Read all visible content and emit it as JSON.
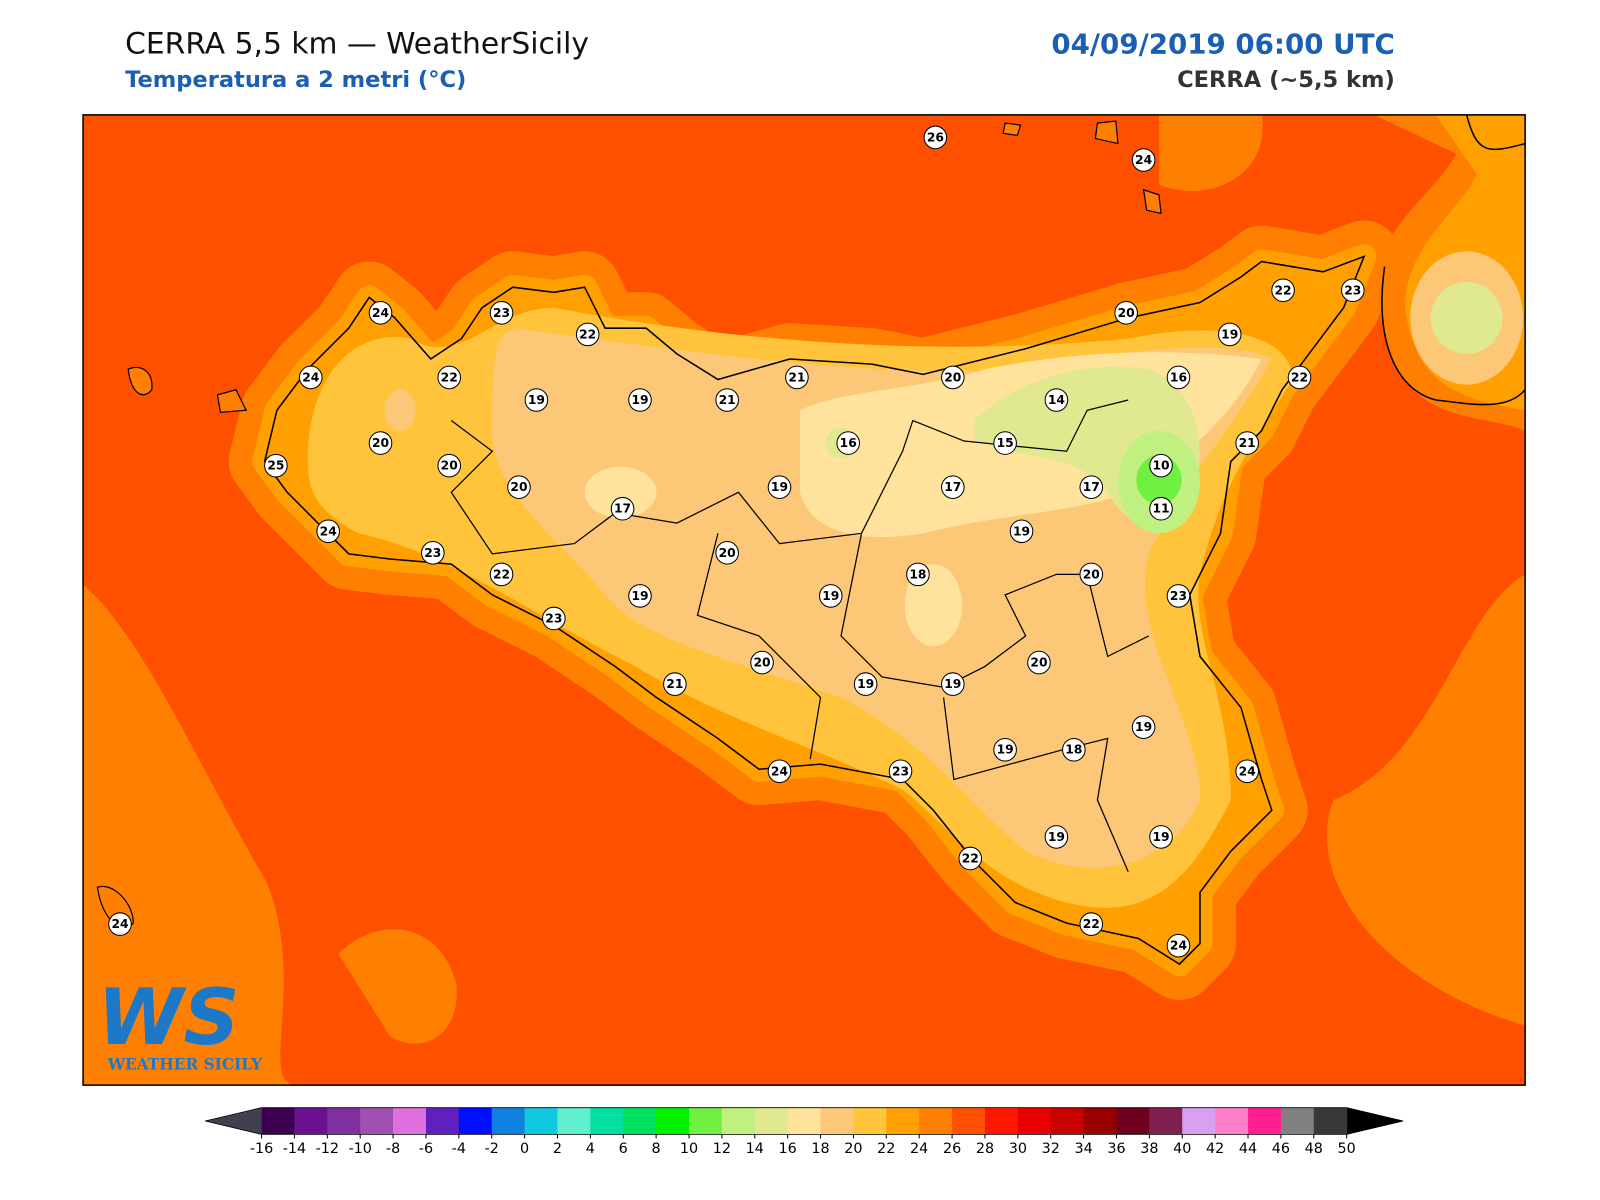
{
  "header": {
    "title": "CERRA 5,5 km — WeatherSicily",
    "subtitle": "Temperatura a 2 metri (°C)",
    "datetime": "04/09/2019 06:00 UTC",
    "model": "CERRA (~5,5 km)"
  },
  "logo": {
    "mark": "WS",
    "text": "WEATHER SICILY"
  },
  "stations": [
    26,
    24,
    24,
    23,
    22,
    20,
    22,
    23,
    19,
    24,
    22,
    19,
    19,
    21,
    21,
    20,
    14,
    16,
    22,
    20,
    16,
    15,
    21,
    25,
    20,
    10,
    20,
    19,
    17,
    17,
    11,
    17,
    19,
    24,
    23,
    20,
    22,
    18,
    20,
    19,
    19,
    23,
    23,
    20,
    20,
    21,
    19,
    19,
    19,
    19,
    18,
    24,
    23,
    24,
    19,
    19,
    22,
    24,
    22,
    24
  ],
  "colorbar": {
    "ticks": [
      -16,
      -14,
      -12,
      -10,
      -8,
      -6,
      -4,
      -2,
      0,
      2,
      4,
      6,
      8,
      10,
      12,
      14,
      16,
      18,
      20,
      22,
      24,
      26,
      28,
      30,
      32,
      34,
      36,
      38,
      40,
      42,
      44,
      46,
      48,
      50
    ],
    "colors": [
      "#3d0050",
      "#6a1090",
      "#8030a0",
      "#a050b0",
      "#e070e0",
      "#6020c0",
      "#0010ff",
      "#1080e0",
      "#10c8e0",
      "#60f0d0",
      "#00e0a0",
      "#00e060",
      "#00f000",
      "#70f040",
      "#c0f080",
      "#e0e890",
      "#ffe39c",
      "#fcc878",
      "#ffc43c",
      "#ffa000",
      "#ff8000",
      "#ff5000",
      "#ff1800",
      "#e80000",
      "#c80000",
      "#980000",
      "#700020",
      "#802050",
      "#d8a0f0",
      "#ff80c8",
      "#ff2090",
      "#808080",
      "#383838"
    ],
    "under_color": "#404050",
    "over_color": "#000000"
  }
}
